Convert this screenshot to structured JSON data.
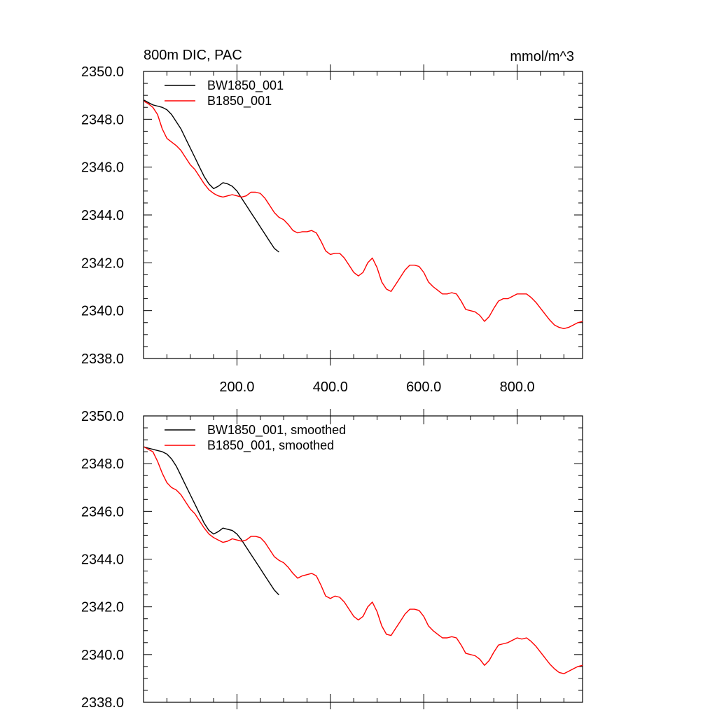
{
  "chart_data": [
    {
      "type": "line",
      "title": "800m DIC, PAC",
      "units": "mmol/m^3",
      "xlim": [
        0,
        940
      ],
      "ylim": [
        2338.0,
        2350.0
      ],
      "yticks": [
        2338.0,
        2340.0,
        2342.0,
        2344.0,
        2346.0,
        2348.0,
        2350.0
      ],
      "ytick_labels": [
        "2338.0",
        "2340.0",
        "2342.0",
        "2344.0",
        "2346.0",
        "2348.0",
        "2350.0"
      ],
      "xticks": [
        200,
        400,
        600,
        800
      ],
      "xtick_labels": [
        "200.0",
        "400.0",
        "600.0",
        "800.0"
      ],
      "legend_position": "top-left",
      "series": [
        {
          "name": "BW1850_001",
          "color": "#000000",
          "x": [
            1,
            10,
            20,
            30,
            40,
            50,
            60,
            70,
            80,
            90,
            100,
            110,
            120,
            130,
            140,
            150,
            160,
            170,
            180,
            190,
            200,
            210,
            220,
            230,
            240,
            250,
            260,
            270,
            280,
            290
          ],
          "y": [
            2348.8,
            2348.7,
            2348.6,
            2348.55,
            2348.5,
            2348.4,
            2348.2,
            2347.9,
            2347.6,
            2347.2,
            2346.8,
            2346.4,
            2346.0,
            2345.6,
            2345.3,
            2345.1,
            2345.2,
            2345.35,
            2345.3,
            2345.2,
            2345.0,
            2344.7,
            2344.4,
            2344.1,
            2343.8,
            2343.5,
            2343.2,
            2342.9,
            2342.6,
            2342.45
          ]
        },
        {
          "name": "B1850_001",
          "color": "#ff0000",
          "x": [
            1,
            10,
            20,
            30,
            40,
            50,
            60,
            70,
            80,
            90,
            100,
            110,
            120,
            130,
            140,
            150,
            160,
            170,
            180,
            190,
            200,
            210,
            220,
            230,
            240,
            250,
            260,
            270,
            280,
            290,
            300,
            310,
            320,
            330,
            340,
            350,
            360,
            370,
            380,
            390,
            400,
            410,
            420,
            430,
            440,
            450,
            460,
            470,
            480,
            490,
            500,
            510,
            520,
            530,
            540,
            550,
            560,
            570,
            580,
            590,
            600,
            610,
            620,
            630,
            640,
            650,
            660,
            670,
            680,
            690,
            700,
            710,
            720,
            730,
            740,
            750,
            760,
            770,
            780,
            790,
            800,
            810,
            820,
            830,
            840,
            850,
            860,
            870,
            880,
            890,
            900,
            910,
            920,
            930,
            940
          ],
          "y": [
            2348.75,
            2348.65,
            2348.5,
            2348.2,
            2347.6,
            2347.2,
            2347.05,
            2346.9,
            2346.7,
            2346.4,
            2346.1,
            2345.9,
            2345.6,
            2345.3,
            2345.05,
            2344.9,
            2344.8,
            2344.75,
            2344.8,
            2344.85,
            2344.8,
            2344.75,
            2344.8,
            2344.95,
            2344.95,
            2344.9,
            2344.7,
            2344.4,
            2344.1,
            2343.9,
            2343.8,
            2343.6,
            2343.35,
            2343.25,
            2343.3,
            2343.3,
            2343.35,
            2343.25,
            2342.9,
            2342.5,
            2342.35,
            2342.4,
            2342.4,
            2342.2,
            2341.9,
            2341.6,
            2341.45,
            2341.6,
            2342.0,
            2342.2,
            2341.8,
            2341.2,
            2340.9,
            2340.8,
            2341.1,
            2341.4,
            2341.7,
            2341.9,
            2341.9,
            2341.85,
            2341.6,
            2341.2,
            2341.0,
            2340.85,
            2340.7,
            2340.7,
            2340.75,
            2340.7,
            2340.4,
            2340.05,
            2340.0,
            2339.95,
            2339.8,
            2339.55,
            2339.75,
            2340.1,
            2340.4,
            2340.5,
            2340.5,
            2340.6,
            2340.7,
            2340.7,
            2340.7,
            2340.55,
            2340.35,
            2340.1,
            2339.85,
            2339.6,
            2339.4,
            2339.3,
            2339.25,
            2339.3,
            2339.4,
            2339.5,
            2339.55
          ]
        }
      ]
    },
    {
      "type": "line",
      "title": "",
      "units": "",
      "xlim": [
        0,
        940
      ],
      "ylim": [
        2338.0,
        2350.0
      ],
      "yticks": [
        2338.0,
        2340.0,
        2342.0,
        2344.0,
        2346.0,
        2348.0,
        2350.0
      ],
      "ytick_labels": [
        "2338.0",
        "2340.0",
        "2342.0",
        "2344.0",
        "2346.0",
        "2348.0",
        "2350.0"
      ],
      "xticks": [
        200,
        400,
        600,
        800
      ],
      "xtick_labels": [],
      "legend_position": "top-left",
      "series": [
        {
          "name": "BW1850_001, smoothed",
          "color": "#000000",
          "x": [
            1,
            10,
            20,
            30,
            40,
            50,
            60,
            70,
            80,
            90,
            100,
            110,
            120,
            130,
            140,
            150,
            160,
            170,
            180,
            190,
            200,
            210,
            220,
            230,
            240,
            250,
            260,
            270,
            280,
            290
          ],
          "y": [
            2348.7,
            2348.65,
            2348.6,
            2348.55,
            2348.5,
            2348.4,
            2348.2,
            2347.9,
            2347.5,
            2347.1,
            2346.7,
            2346.3,
            2345.9,
            2345.5,
            2345.2,
            2345.05,
            2345.15,
            2345.3,
            2345.25,
            2345.2,
            2345.05,
            2344.8,
            2344.5,
            2344.2,
            2343.9,
            2343.6,
            2343.3,
            2343.0,
            2342.7,
            2342.5
          ]
        },
        {
          "name": "B1850_001, smoothed",
          "color": "#ff0000",
          "x": [
            1,
            10,
            20,
            30,
            40,
            50,
            60,
            70,
            80,
            90,
            100,
            110,
            120,
            130,
            140,
            150,
            160,
            170,
            180,
            190,
            200,
            210,
            220,
            230,
            240,
            250,
            260,
            270,
            280,
            290,
            300,
            310,
            320,
            330,
            340,
            350,
            360,
            370,
            380,
            390,
            400,
            410,
            420,
            430,
            440,
            450,
            460,
            470,
            480,
            490,
            500,
            510,
            520,
            530,
            540,
            550,
            560,
            570,
            580,
            590,
            600,
            610,
            620,
            630,
            640,
            650,
            660,
            670,
            680,
            690,
            700,
            710,
            720,
            730,
            740,
            750,
            760,
            770,
            780,
            790,
            800,
            810,
            820,
            830,
            840,
            850,
            860,
            870,
            880,
            890,
            900,
            910,
            920,
            930,
            940
          ],
          "y": [
            2348.7,
            2348.6,
            2348.5,
            2348.1,
            2347.6,
            2347.2,
            2347.0,
            2346.9,
            2346.7,
            2346.4,
            2346.1,
            2345.9,
            2345.6,
            2345.3,
            2345.05,
            2344.9,
            2344.8,
            2344.7,
            2344.75,
            2344.85,
            2344.8,
            2344.75,
            2344.8,
            2344.95,
            2344.95,
            2344.9,
            2344.7,
            2344.4,
            2344.1,
            2343.95,
            2343.85,
            2343.65,
            2343.4,
            2343.2,
            2343.3,
            2343.35,
            2343.4,
            2343.3,
            2342.9,
            2342.45,
            2342.35,
            2342.45,
            2342.4,
            2342.2,
            2341.9,
            2341.6,
            2341.45,
            2341.6,
            2342.0,
            2342.2,
            2341.8,
            2341.2,
            2340.85,
            2340.8,
            2341.1,
            2341.4,
            2341.7,
            2341.9,
            2341.9,
            2341.85,
            2341.6,
            2341.2,
            2341.0,
            2340.85,
            2340.7,
            2340.7,
            2340.75,
            2340.7,
            2340.4,
            2340.05,
            2340.0,
            2339.95,
            2339.8,
            2339.55,
            2339.75,
            2340.1,
            2340.4,
            2340.45,
            2340.5,
            2340.6,
            2340.7,
            2340.65,
            2340.7,
            2340.55,
            2340.35,
            2340.1,
            2339.85,
            2339.6,
            2339.4,
            2339.25,
            2339.2,
            2339.3,
            2339.4,
            2339.5,
            2339.55
          ]
        }
      ]
    }
  ]
}
